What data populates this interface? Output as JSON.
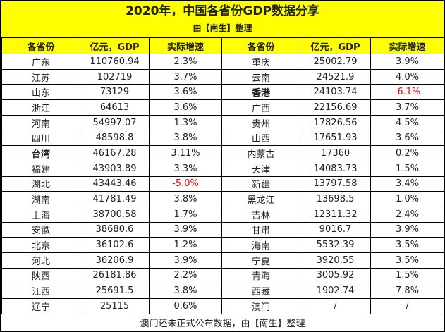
{
  "chart_data": {
    "type": "table",
    "title": "2020年，中国各省份GDP数据分享",
    "subtitle": "由【南生】整理",
    "columns": [
      "各省份",
      "亿元，GDP",
      "实际增速",
      "各省份",
      "亿元，GDP",
      "实际增速"
    ],
    "rows": [
      [
        "广东",
        "110760.94",
        "2.3%",
        "重庆",
        "25002.79",
        "3.9%"
      ],
      [
        "江苏",
        "102719",
        "3.7%",
        "云南",
        "24521.9",
        "4.0%"
      ],
      [
        "山东",
        "73129",
        "3.6%",
        "香港",
        "24103.74",
        "-6.1%"
      ],
      [
        "浙江",
        "64613",
        "3.6%",
        "广西",
        "22156.69",
        "3.7%"
      ],
      [
        "河南",
        "54997.07",
        "1.3%",
        "贵州",
        "17826.56",
        "4.5%"
      ],
      [
        "四川",
        "48598.8",
        "3.8%",
        "山西",
        "17651.93",
        "3.6%"
      ],
      [
        "台湾",
        "46167.28",
        "3.11%",
        "内蒙古",
        "17360",
        "0.2%"
      ],
      [
        "福建",
        "43903.89",
        "3.3%",
        "天津",
        "14083.73",
        "1.5%"
      ],
      [
        "湖北",
        "43443.46",
        "-5.0%",
        "新疆",
        "13797.58",
        "3.4%"
      ],
      [
        "湖南",
        "41781.49",
        "3.8%",
        "黑龙江",
        "13698.5",
        "1.0%"
      ],
      [
        "上海",
        "38700.58",
        "1.7%",
        "吉林",
        "12311.32",
        "2.4%"
      ],
      [
        "安徽",
        "38680.6",
        "3.9%",
        "甘肃",
        "9016.7",
        "3.9%"
      ],
      [
        "北京",
        "36102.6",
        "1.2%",
        "海南",
        "5532.39",
        "3.5%"
      ],
      [
        "河北",
        "36206.9",
        "3.9%",
        "宁夏",
        "3920.55",
        "3.5%"
      ],
      [
        "陕西",
        "26181.86",
        "2.2%",
        "青海",
        "3005.92",
        "1.5%"
      ],
      [
        "江西",
        "25691.5",
        "3.8%",
        "西藏",
        "1902.74",
        "7.8%"
      ],
      [
        "辽宁",
        "25115",
        "0.6%",
        "澳门",
        "/",
        "/"
      ]
    ],
    "bold_provinces": [
      "台湾",
      "香港"
    ],
    "footnote": "澳门还未正式公布数据，由【南生】整理",
    "colors": {
      "band_yellow": "#ffff00",
      "grid_black": "#000000",
      "text": "#212121",
      "negative_red": "#ff0000",
      "row_background": "#ffffff"
    }
  }
}
